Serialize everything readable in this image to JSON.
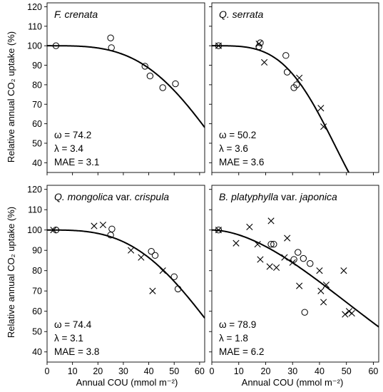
{
  "figure": {
    "ylabel": "Relative annual CO₂ uptake (%)",
    "xlabel": "Annual COU (mmol m⁻²)"
  },
  "chart_data": [
    {
      "type": "scatter",
      "title": "F. crenata",
      "stats": [
        "ω = 74.2",
        "λ = 3.4",
        "MAE = 3.1"
      ],
      "xlim": [
        0,
        62
      ],
      "ylim": [
        35,
        122
      ],
      "x_ticks": [
        0,
        10,
        20,
        30,
        40,
        50,
        60
      ],
      "y_ticks": [
        40,
        50,
        60,
        70,
        80,
        90,
        100,
        110,
        120
      ],
      "series": [
        {
          "marker": "circle",
          "points": [
            [
              3.5,
              100
            ],
            [
              25,
              104
            ],
            [
              25.3,
              99
            ],
            [
              38.5,
              89.5
            ],
            [
              40.5,
              84.5
            ],
            [
              45.5,
              78.5
            ],
            [
              50.5,
              80.5
            ]
          ]
        }
      ],
      "curve": {
        "omega": 74.2,
        "lambda": 3.4
      }
    },
    {
      "type": "scatter",
      "title": "Q. serrata",
      "stats": [
        "ω = 50.2",
        "λ = 3.6",
        "MAE = 3.6"
      ],
      "xlim": [
        0,
        62
      ],
      "ylim": [
        35,
        122
      ],
      "x_ticks": [
        0,
        10,
        20,
        30,
        40,
        50,
        60
      ],
      "y_ticks": [
        40,
        50,
        60,
        70,
        80,
        90,
        100,
        110,
        120
      ],
      "series": [
        {
          "marker": "circle",
          "points": [
            [
              2.5,
              100
            ],
            [
              17.5,
              99.5
            ],
            [
              18,
              101.5
            ],
            [
              27.5,
              95
            ],
            [
              28,
              86.5
            ],
            [
              30.5,
              78.5
            ],
            [
              31.5,
              80
            ]
          ]
        },
        {
          "marker": "cross",
          "points": [
            [
              2.5,
              100
            ],
            [
              17.5,
              101
            ],
            [
              19.5,
              91.5
            ],
            [
              32.5,
              83.5
            ],
            [
              40.5,
              68
            ],
            [
              41.5,
              58.5
            ]
          ]
        }
      ],
      "curve": {
        "omega": 50.2,
        "lambda": 3.6
      }
    },
    {
      "type": "scatter",
      "title": "Q. mongolica var. crispula",
      "stats": [
        "ω = 74.4",
        "λ = 3.1",
        "MAE = 3.8"
      ],
      "xlim": [
        0,
        62
      ],
      "ylim": [
        35,
        122
      ],
      "x_ticks": [
        0,
        10,
        20,
        30,
        40,
        50,
        60
      ],
      "y_ticks": [
        40,
        50,
        60,
        70,
        80,
        90,
        100,
        110,
        120
      ],
      "series": [
        {
          "marker": "circle",
          "points": [
            [
              3.5,
              100
            ],
            [
              25,
              97.5
            ],
            [
              25.5,
              100.5
            ],
            [
              41,
              89.5
            ],
            [
              42.5,
              87.5
            ],
            [
              50,
              77
            ],
            [
              51.5,
              71
            ]
          ]
        },
        {
          "marker": "cross",
          "points": [
            [
              2.5,
              100
            ],
            [
              18.5,
              102
            ],
            [
              22,
              102.5
            ],
            [
              33,
              90
            ],
            [
              37,
              86.5
            ],
            [
              41.5,
              70
            ],
            [
              45.5,
              80
            ]
          ]
        }
      ],
      "curve": {
        "omega": 74.4,
        "lambda": 3.1
      }
    },
    {
      "type": "scatter",
      "title": "B. platyphylla var. japonica",
      "stats": [
        "ω = 78.9",
        "λ = 1.8",
        "MAE = 6.2"
      ],
      "xlim": [
        0,
        62
      ],
      "ylim": [
        35,
        122
      ],
      "x_ticks": [
        0,
        10,
        20,
        30,
        40,
        50,
        60
      ],
      "y_ticks": [
        40,
        50,
        60,
        70,
        80,
        90,
        100,
        110,
        120
      ],
      "series": [
        {
          "marker": "circle",
          "points": [
            [
              2.5,
              100
            ],
            [
              22,
              93
            ],
            [
              23,
              93
            ],
            [
              30.5,
              85.5
            ],
            [
              32,
              89
            ],
            [
              34,
              86
            ],
            [
              34.5,
              59.5
            ],
            [
              36.5,
              83.5
            ]
          ]
        },
        {
          "marker": "cross",
          "points": [
            [
              2.5,
              100
            ],
            [
              9,
              93.5
            ],
            [
              14,
              101.5
            ],
            [
              17,
              93
            ],
            [
              18,
              85.5
            ],
            [
              21.5,
              82
            ],
            [
              22,
              104.5
            ],
            [
              24,
              81.5
            ],
            [
              27,
              86.5
            ],
            [
              28,
              96
            ],
            [
              30,
              84
            ],
            [
              32.5,
              72.5
            ],
            [
              40,
              80
            ],
            [
              40.5,
              70
            ],
            [
              41.5,
              64.5
            ],
            [
              42.5,
              73
            ],
            [
              49,
              80
            ],
            [
              49.5,
              58.5
            ],
            [
              51,
              60
            ],
            [
              52,
              59
            ]
          ]
        }
      ],
      "curve": {
        "omega": 78.9,
        "lambda": 1.8
      }
    }
  ]
}
